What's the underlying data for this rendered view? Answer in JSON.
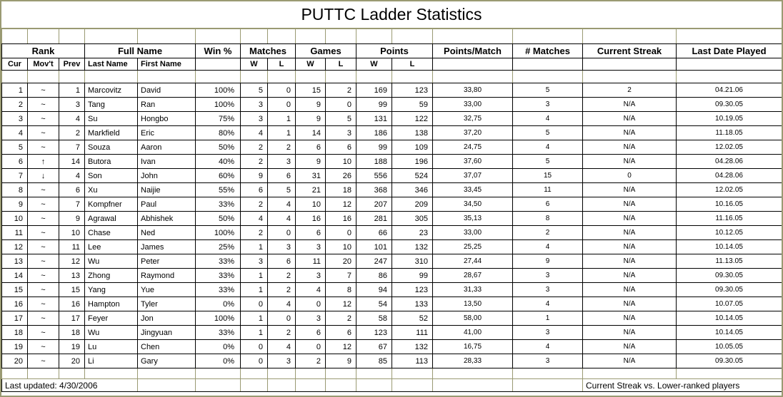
{
  "title": "PUTTC Ladder Statistics",
  "columns": {
    "groups": [
      {
        "label": "Rank",
        "span": 3
      },
      {
        "label": "Full Name",
        "span": 2
      },
      {
        "label": "Win %",
        "span": 1
      },
      {
        "label": "Matches",
        "span": 2
      },
      {
        "label": "Games",
        "span": 2
      },
      {
        "label": "Points",
        "span": 2
      },
      {
        "label": "Points/Match",
        "span": 1
      },
      {
        "label": "# Matches",
        "span": 1
      },
      {
        "label": "Current Streak",
        "span": 1
      },
      {
        "label": "Last Date Played",
        "span": 1
      }
    ],
    "sub": [
      "Cur",
      "Mov't",
      "Prev",
      "Last Name",
      "First Name",
      "",
      "W",
      "L",
      "W",
      "L",
      "W",
      "L",
      "",
      "",
      "",
      ""
    ]
  },
  "rows": [
    {
      "cur": "1",
      "movt": "~",
      "prev": "1",
      "last_name": "Marcovitz",
      "first_name": "David",
      "win_pct": "100%",
      "mw": "5",
      "ml": "0",
      "gw": "15",
      "gl": "2",
      "pw": "169",
      "pl": "123",
      "points_per_match": "33,80",
      "num_matches": "5",
      "streak": "2",
      "last_played": "04.21.06"
    },
    {
      "cur": "2",
      "movt": "~",
      "prev": "3",
      "last_name": "Tang",
      "first_name": "Ran",
      "win_pct": "100%",
      "mw": "3",
      "ml": "0",
      "gw": "9",
      "gl": "0",
      "pw": "99",
      "pl": "59",
      "points_per_match": "33,00",
      "num_matches": "3",
      "streak": "N/A",
      "last_played": "09.30.05"
    },
    {
      "cur": "3",
      "movt": "~",
      "prev": "4",
      "last_name": "Su",
      "first_name": "Hongbo",
      "win_pct": "75%",
      "mw": "3",
      "ml": "1",
      "gw": "9",
      "gl": "5",
      "pw": "131",
      "pl": "122",
      "points_per_match": "32,75",
      "num_matches": "4",
      "streak": "N/A",
      "last_played": "10.19.05"
    },
    {
      "cur": "4",
      "movt": "~",
      "prev": "2",
      "last_name": "Markfield",
      "first_name": "Eric",
      "win_pct": "80%",
      "mw": "4",
      "ml": "1",
      "gw": "14",
      "gl": "3",
      "pw": "186",
      "pl": "138",
      "points_per_match": "37,20",
      "num_matches": "5",
      "streak": "N/A",
      "last_played": "11.18.05"
    },
    {
      "cur": "5",
      "movt": "~",
      "prev": "7",
      "last_name": "Souza",
      "first_name": "Aaron",
      "win_pct": "50%",
      "mw": "2",
      "ml": "2",
      "gw": "6",
      "gl": "6",
      "pw": "99",
      "pl": "109",
      "points_per_match": "24,75",
      "num_matches": "4",
      "streak": "N/A",
      "last_played": "12.02.05"
    },
    {
      "cur": "6",
      "movt": "↑",
      "prev": "14",
      "last_name": "Butora",
      "first_name": "Ivan",
      "win_pct": "40%",
      "mw": "2",
      "ml": "3",
      "gw": "9",
      "gl": "10",
      "pw": "188",
      "pl": "196",
      "points_per_match": "37,60",
      "num_matches": "5",
      "streak": "N/A",
      "last_played": "04.28.06"
    },
    {
      "cur": "7",
      "movt": "↓",
      "prev": "4",
      "last_name": "Son",
      "first_name": "John",
      "win_pct": "60%",
      "mw": "9",
      "ml": "6",
      "gw": "31",
      "gl": "26",
      "pw": "556",
      "pl": "524",
      "points_per_match": "37,07",
      "num_matches": "15",
      "streak": "0",
      "last_played": "04.28.06"
    },
    {
      "cur": "8",
      "movt": "~",
      "prev": "6",
      "last_name": "Xu",
      "first_name": "Naijie",
      "win_pct": "55%",
      "mw": "6",
      "ml": "5",
      "gw": "21",
      "gl": "18",
      "pw": "368",
      "pl": "346",
      "points_per_match": "33,45",
      "num_matches": "11",
      "streak": "N/A",
      "last_played": "12.02.05"
    },
    {
      "cur": "9",
      "movt": "~",
      "prev": "7",
      "last_name": "Kompfner",
      "first_name": "Paul",
      "win_pct": "33%",
      "mw": "2",
      "ml": "4",
      "gw": "10",
      "gl": "12",
      "pw": "207",
      "pl": "209",
      "points_per_match": "34,50",
      "num_matches": "6",
      "streak": "N/A",
      "last_played": "10.16.05"
    },
    {
      "cur": "10",
      "movt": "~",
      "prev": "9",
      "last_name": "Agrawal",
      "first_name": "Abhishek",
      "win_pct": "50%",
      "mw": "4",
      "ml": "4",
      "gw": "16",
      "gl": "16",
      "pw": "281",
      "pl": "305",
      "points_per_match": "35,13",
      "num_matches": "8",
      "streak": "N/A",
      "last_played": "11.16.05"
    },
    {
      "cur": "11",
      "movt": "~",
      "prev": "10",
      "last_name": "Chase",
      "first_name": "Ned",
      "win_pct": "100%",
      "mw": "2",
      "ml": "0",
      "gw": "6",
      "gl": "0",
      "pw": "66",
      "pl": "23",
      "points_per_match": "33,00",
      "num_matches": "2",
      "streak": "N/A",
      "last_played": "10.12.05"
    },
    {
      "cur": "12",
      "movt": "~",
      "prev": "11",
      "last_name": "Lee",
      "first_name": "James",
      "win_pct": "25%",
      "mw": "1",
      "ml": "3",
      "gw": "3",
      "gl": "10",
      "pw": "101",
      "pl": "132",
      "points_per_match": "25,25",
      "num_matches": "4",
      "streak": "N/A",
      "last_played": "10.14.05"
    },
    {
      "cur": "13",
      "movt": "~",
      "prev": "12",
      "last_name": "Wu",
      "first_name": "Peter",
      "win_pct": "33%",
      "mw": "3",
      "ml": "6",
      "gw": "11",
      "gl": "20",
      "pw": "247",
      "pl": "310",
      "points_per_match": "27,44",
      "num_matches": "9",
      "streak": "N/A",
      "last_played": "11.13.05"
    },
    {
      "cur": "14",
      "movt": "~",
      "prev": "13",
      "last_name": "Zhong",
      "first_name": "Raymond",
      "win_pct": "33%",
      "mw": "1",
      "ml": "2",
      "gw": "3",
      "gl": "7",
      "pw": "86",
      "pl": "99",
      "points_per_match": "28,67",
      "num_matches": "3",
      "streak": "N/A",
      "last_played": "09.30.05"
    },
    {
      "cur": "15",
      "movt": "~",
      "prev": "15",
      "last_name": "Yang",
      "first_name": "Yue",
      "win_pct": "33%",
      "mw": "1",
      "ml": "2",
      "gw": "4",
      "gl": "8",
      "pw": "94",
      "pl": "123",
      "points_per_match": "31,33",
      "num_matches": "3",
      "streak": "N/A",
      "last_played": "09.30.05"
    },
    {
      "cur": "16",
      "movt": "~",
      "prev": "16",
      "last_name": "Hampton",
      "first_name": "Tyler",
      "win_pct": "0%",
      "mw": "0",
      "ml": "4",
      "gw": "0",
      "gl": "12",
      "pw": "54",
      "pl": "133",
      "points_per_match": "13,50",
      "num_matches": "4",
      "streak": "N/A",
      "last_played": "10.07.05"
    },
    {
      "cur": "17",
      "movt": "~",
      "prev": "17",
      "last_name": "Feyer",
      "first_name": "Jon",
      "win_pct": "100%",
      "mw": "1",
      "ml": "0",
      "gw": "3",
      "gl": "2",
      "pw": "58",
      "pl": "52",
      "points_per_match": "58,00",
      "num_matches": "1",
      "streak": "N/A",
      "last_played": "10.14.05"
    },
    {
      "cur": "18",
      "movt": "~",
      "prev": "18",
      "last_name": "Wu",
      "first_name": "Jingyuan",
      "win_pct": "33%",
      "mw": "1",
      "ml": "2",
      "gw": "6",
      "gl": "6",
      "pw": "123",
      "pl": "111",
      "points_per_match": "41,00",
      "num_matches": "3",
      "streak": "N/A",
      "last_played": "10.14.05"
    },
    {
      "cur": "19",
      "movt": "~",
      "prev": "19",
      "last_name": "Lu",
      "first_name": "Chen",
      "win_pct": "0%",
      "mw": "0",
      "ml": "4",
      "gw": "0",
      "gl": "12",
      "pw": "67",
      "pl": "132",
      "points_per_match": "16,75",
      "num_matches": "4",
      "streak": "N/A",
      "last_played": "10.05.05"
    },
    {
      "cur": "20",
      "movt": "~",
      "prev": "20",
      "last_name": "Li",
      "first_name": "Gary",
      "win_pct": "0%",
      "mw": "0",
      "ml": "3",
      "gw": "2",
      "gl": "9",
      "pw": "85",
      "pl": "113",
      "points_per_match": "28,33",
      "num_matches": "3",
      "streak": "N/A",
      "last_played": "09.30.05"
    }
  ],
  "footer": {
    "left": "Last updated: 4/30/2006",
    "right": "Current Streak vs. Lower-ranked players"
  },
  "colors": {
    "grid_line": "#9a9a73",
    "cell_border": "#000000",
    "background": "#ffffff",
    "text": "#000000"
  }
}
